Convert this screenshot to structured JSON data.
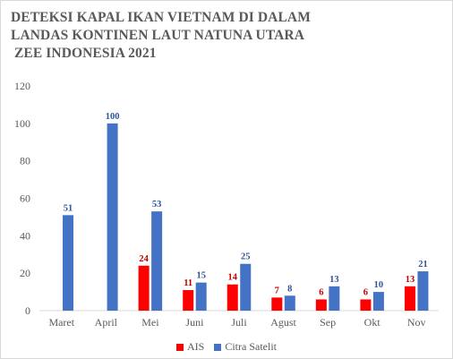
{
  "chart_data": {
    "type": "bar",
    "title_lines": [
      "DETEKSI KAPAL IKAN VIETNAM DI DALAM",
      "LANDAS KONTINEN LAUT NATUNA UTARA",
      " ZEE INDONESIA 2021"
    ],
    "categories": [
      "Maret",
      "April",
      "Mei",
      "Juni",
      "Juli",
      "Agust",
      "Sep",
      "Okt",
      "Nov"
    ],
    "series": [
      {
        "name": "AIS",
        "color": "#ff0000",
        "values": [
          null,
          null,
          24,
          11,
          14,
          7,
          6,
          6,
          13
        ]
      },
      {
        "name": "Citra Satelit",
        "color": "#4472c4",
        "values": [
          51,
          100,
          53,
          15,
          25,
          8,
          13,
          10,
          21
        ]
      }
    ],
    "yticks": [
      "0",
      "20",
      "40",
      "60",
      "80",
      "100",
      "120"
    ],
    "ylim": [
      0,
      120
    ],
    "xlabel": "",
    "ylabel": "",
    "grid": false,
    "legend_position": "bottom"
  }
}
